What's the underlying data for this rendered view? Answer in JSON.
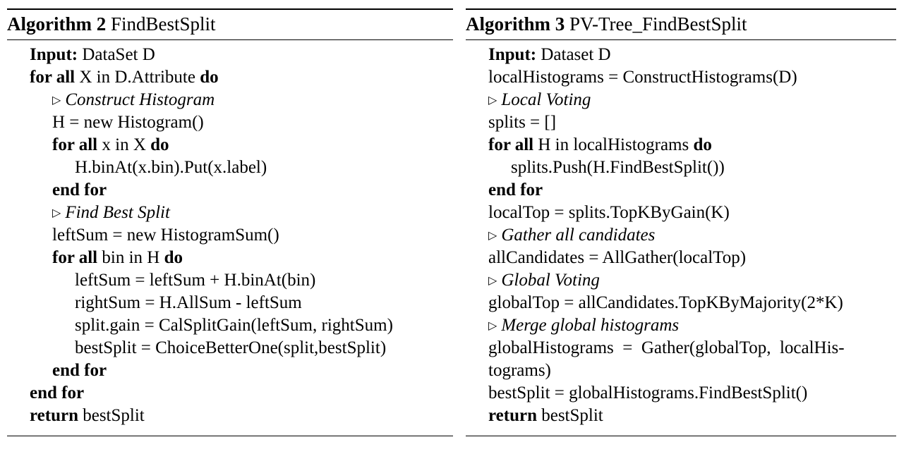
{
  "algorithm_left": {
    "caption_label": "Algorithm 2",
    "caption_title": "FindBestSplit",
    "lines": [
      {
        "indent": 0,
        "parts": [
          {
            "t": "Input:",
            "s": "kw"
          },
          {
            "t": " DataSet D",
            "s": ""
          }
        ]
      },
      {
        "indent": 0,
        "parts": [
          {
            "t": "for all",
            "s": "kw"
          },
          {
            "t": " X in D.Attribute ",
            "s": ""
          },
          {
            "t": "do",
            "s": "kw"
          }
        ]
      },
      {
        "indent": 1,
        "comment": true,
        "parts": [
          {
            "t": "Construct Histogram",
            "s": "cm"
          }
        ]
      },
      {
        "indent": 1,
        "parts": [
          {
            "t": "H = new Histogram()",
            "s": ""
          }
        ]
      },
      {
        "indent": 1,
        "parts": [
          {
            "t": "for all",
            "s": "kw"
          },
          {
            "t": " x in X ",
            "s": ""
          },
          {
            "t": "do",
            "s": "kw"
          }
        ]
      },
      {
        "indent": 2,
        "parts": [
          {
            "t": "H.binAt(x.bin).Put(x.label)",
            "s": ""
          }
        ]
      },
      {
        "indent": 1,
        "parts": [
          {
            "t": "end for",
            "s": "kw"
          }
        ]
      },
      {
        "indent": 1,
        "comment": true,
        "parts": [
          {
            "t": "Find Best Split",
            "s": "cm"
          }
        ]
      },
      {
        "indent": 1,
        "parts": [
          {
            "t": "leftSum = new HistogramSum()",
            "s": ""
          }
        ]
      },
      {
        "indent": 1,
        "parts": [
          {
            "t": "for all",
            "s": "kw"
          },
          {
            "t": " bin in H ",
            "s": ""
          },
          {
            "t": "do",
            "s": "kw"
          }
        ]
      },
      {
        "indent": 2,
        "parts": [
          {
            "t": "leftSum = leftSum + H.binAt(bin)",
            "s": ""
          }
        ]
      },
      {
        "indent": 2,
        "parts": [
          {
            "t": "rightSum = H.AllSum - leftSum",
            "s": ""
          }
        ]
      },
      {
        "indent": 2,
        "parts": [
          {
            "t": "split.gain = CalSplitGain(leftSum, rightSum)",
            "s": ""
          }
        ]
      },
      {
        "indent": 2,
        "parts": [
          {
            "t": "bestSplit = ChoiceBetterOne(split,bestSplit)",
            "s": ""
          }
        ]
      },
      {
        "indent": 1,
        "parts": [
          {
            "t": "end for",
            "s": "kw"
          }
        ]
      },
      {
        "indent": 0,
        "parts": [
          {
            "t": "end for",
            "s": "kw"
          }
        ]
      },
      {
        "indent": 0,
        "parts": [
          {
            "t": "return",
            "s": "kw"
          },
          {
            "t": " bestSplit",
            "s": ""
          }
        ]
      }
    ]
  },
  "algorithm_right": {
    "caption_label": "Algorithm 3",
    "caption_title": "PV-Tree_FindBestSplit",
    "lines": [
      {
        "indent": 0,
        "parts": [
          {
            "t": "Input:",
            "s": "kw"
          },
          {
            "t": " Dataset D",
            "s": ""
          }
        ]
      },
      {
        "indent": 0,
        "parts": [
          {
            "t": "localHistograms = ConstructHistograms(D)",
            "s": ""
          }
        ]
      },
      {
        "indent": 0,
        "comment": true,
        "parts": [
          {
            "t": "Local Voting",
            "s": "cm"
          }
        ]
      },
      {
        "indent": 0,
        "parts": [
          {
            "t": "splits = []",
            "s": ""
          }
        ]
      },
      {
        "indent": 0,
        "parts": [
          {
            "t": "for all",
            "s": "kw"
          },
          {
            "t": " H in localHistograms ",
            "s": ""
          },
          {
            "t": "do",
            "s": "kw"
          }
        ]
      },
      {
        "indent": 1,
        "parts": [
          {
            "t": "splits.Push(H.FindBestSplit())",
            "s": ""
          }
        ]
      },
      {
        "indent": 0,
        "parts": [
          {
            "t": "end for",
            "s": "kw"
          }
        ]
      },
      {
        "indent": 0,
        "parts": [
          {
            "t": "localTop = splits.TopKByGain(K)",
            "s": ""
          }
        ]
      },
      {
        "indent": 0,
        "comment": true,
        "parts": [
          {
            "t": "Gather all candidates",
            "s": "cm"
          }
        ]
      },
      {
        "indent": 0,
        "parts": [
          {
            "t": "allCandidates = AllGather(localTop)",
            "s": ""
          }
        ]
      },
      {
        "indent": 0,
        "comment": true,
        "parts": [
          {
            "t": "Global Voting",
            "s": "cm"
          }
        ]
      },
      {
        "indent": 0,
        "parts": [
          {
            "t": "globalTop = allCandidates.TopKByMajority(2*K)",
            "s": ""
          }
        ]
      },
      {
        "indent": 0,
        "comment": true,
        "parts": [
          {
            "t": "Merge global histograms",
            "s": "cm"
          }
        ]
      },
      {
        "indent": 0,
        "parts": [
          {
            "t": "globalHistograms  =  Gather(globalTop,  localHis-",
            "s": ""
          }
        ]
      },
      {
        "indent": 0,
        "parts": [
          {
            "t": "tograms)",
            "s": ""
          }
        ]
      },
      {
        "indent": 0,
        "parts": [
          {
            "t": "bestSplit = globalHistograms.FindBestSplit()",
            "s": ""
          }
        ]
      },
      {
        "indent": 0,
        "parts": [
          {
            "t": "return",
            "s": "kw"
          },
          {
            "t": " bestSplit",
            "s": ""
          }
        ]
      }
    ]
  },
  "comment_marker": "▷"
}
